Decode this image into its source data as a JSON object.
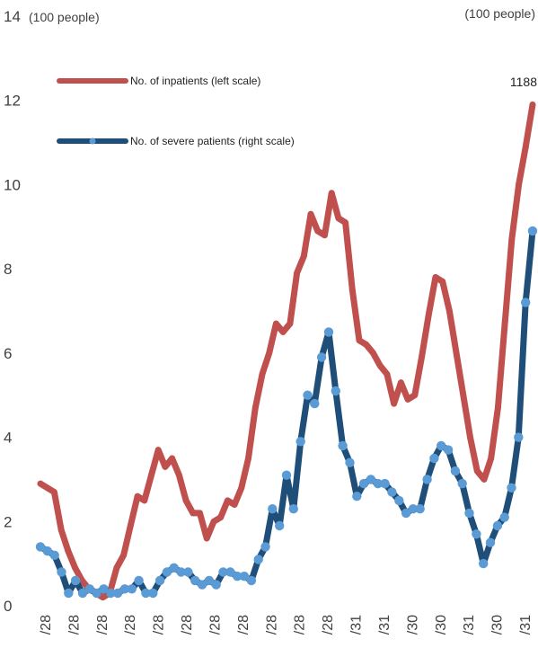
{
  "chart_data": {
    "type": "line",
    "title": "",
    "left_unit": "(100 people)",
    "right_unit": "(100 people)",
    "ylim": [
      0,
      14
    ],
    "y_ticks": [
      0,
      2,
      4,
      6,
      8,
      10,
      12,
      14
    ],
    "x_tick_labels": [
      "/28",
      "/28",
      "/28",
      "/28",
      "/28",
      "/28",
      "/28",
      "/28",
      "/28",
      "/28",
      "/28",
      "/31",
      "/31",
      "/30",
      "/30",
      "/31",
      "/30",
      "/31"
    ],
    "annotation": "1188",
    "series": [
      {
        "name": "No. of inpatients (left scale)",
        "color": "#c0504d",
        "values": [
          2.9,
          2.8,
          2.7,
          1.8,
          1.3,
          0.9,
          0.6,
          0.4,
          0.3,
          0.2,
          0.3,
          0.9,
          1.2,
          1.9,
          2.6,
          2.5,
          3.1,
          3.7,
          3.3,
          3.5,
          3.1,
          2.5,
          2.2,
          2.2,
          1.6,
          2.0,
          2.1,
          2.5,
          2.4,
          2.8,
          3.5,
          4.7,
          5.5,
          6.0,
          6.7,
          6.5,
          6.7,
          7.9,
          8.3,
          9.3,
          8.9,
          8.8,
          9.8,
          9.2,
          9.1,
          7.5,
          6.3,
          6.2,
          6.0,
          5.7,
          5.5,
          4.8,
          5.3,
          4.9,
          5.0,
          5.9,
          6.9,
          7.8,
          7.7,
          7.0,
          6.0,
          5.0,
          4.0,
          3.2,
          3.0,
          3.5,
          4.7,
          6.7,
          8.7,
          10.0,
          10.9,
          11.9
        ]
      },
      {
        "name": "No. of severe patients (right scale)",
        "color": "#1f4e79",
        "values": [
          1.4,
          1.3,
          1.2,
          0.8,
          0.3,
          0.6,
          0.3,
          0.4,
          0.3,
          0.4,
          0.3,
          0.3,
          0.4,
          0.4,
          0.6,
          0.3,
          0.3,
          0.6,
          0.8,
          0.9,
          0.8,
          0.8,
          0.6,
          0.5,
          0.6,
          0.5,
          0.8,
          0.8,
          0.7,
          0.7,
          0.6,
          1.1,
          1.4,
          2.3,
          1.9,
          3.1,
          2.3,
          3.9,
          5.0,
          4.8,
          5.9,
          6.5,
          5.1,
          3.8,
          3.4,
          2.6,
          2.9,
          3.0,
          2.9,
          2.9,
          2.7,
          2.5,
          2.2,
          2.3,
          2.3,
          3.0,
          3.5,
          3.8,
          3.7,
          3.2,
          2.9,
          2.2,
          1.7,
          1.0,
          1.5,
          1.9,
          2.1,
          2.8,
          4.0,
          7.2,
          8.9
        ]
      }
    ]
  }
}
